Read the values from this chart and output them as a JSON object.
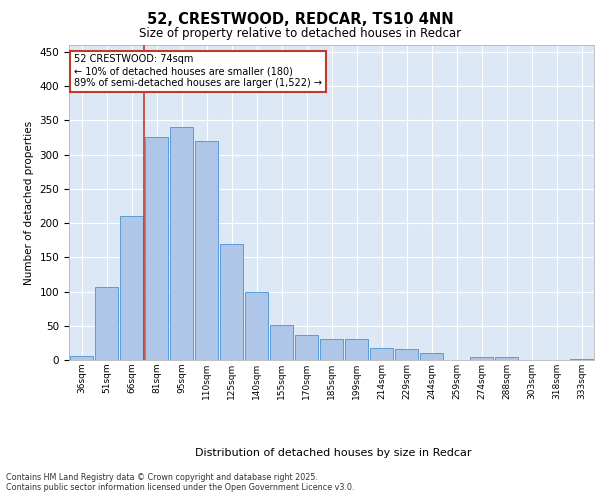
{
  "title_line1": "52, CRESTWOOD, REDCAR, TS10 4NN",
  "title_line2": "Size of property relative to detached houses in Redcar",
  "xlabel": "Distribution of detached houses by size in Redcar",
  "ylabel": "Number of detached properties",
  "categories": [
    "36sqm",
    "51sqm",
    "66sqm",
    "81sqm",
    "95sqm",
    "110sqm",
    "125sqm",
    "140sqm",
    "155sqm",
    "170sqm",
    "185sqm",
    "199sqm",
    "214sqm",
    "229sqm",
    "244sqm",
    "259sqm",
    "274sqm",
    "288sqm",
    "303sqm",
    "318sqm",
    "333sqm"
  ],
  "values": [
    6,
    107,
    211,
    325,
    340,
    320,
    170,
    99,
    51,
    36,
    30,
    30,
    17,
    16,
    10,
    0,
    5,
    5,
    0,
    0,
    2
  ],
  "bar_color": "#aec6e8",
  "bar_edge_color": "#5b9bd5",
  "vline_x_index": 2,
  "vline_color": "#c0392b",
  "annotation_text": "52 CRESTWOOD: 74sqm\n← 10% of detached houses are smaller (180)\n89% of semi-detached houses are larger (1,522) →",
  "annotation_box_color": "#ffffff",
  "annotation_box_edge": "#c0392b",
  "ylim": [
    0,
    460
  ],
  "yticks": [
    0,
    50,
    100,
    150,
    200,
    250,
    300,
    350,
    400,
    450
  ],
  "background_color": "#dce8f5",
  "grid_color": "#ffffff",
  "fig_background": "#ffffff",
  "footer_line1": "Contains HM Land Registry data © Crown copyright and database right 2025.",
  "footer_line2": "Contains public sector information licensed under the Open Government Licence v3.0."
}
